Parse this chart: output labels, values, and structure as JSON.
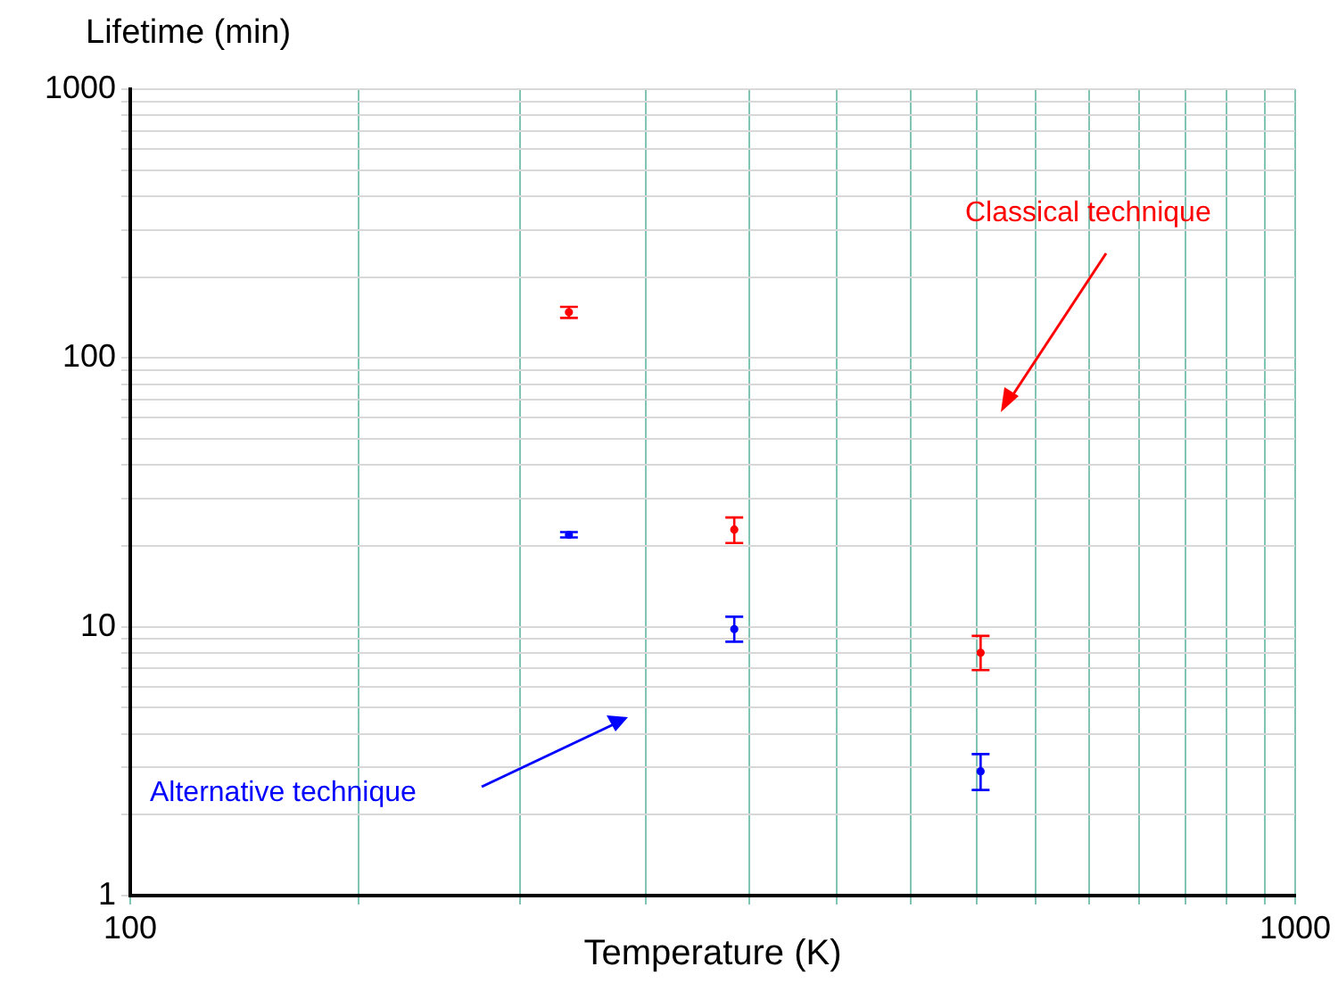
{
  "chart_data": {
    "type": "scatter",
    "xlabel": "Temperature (K)",
    "ylabel": "Lifetime (min)",
    "x": [
      238,
      330,
      537
    ],
    "series": [
      {
        "name": "Classical technique",
        "color": "#ff0000",
        "values": [
          148,
          23,
          8
        ],
        "errors": [
          [
            141,
            155
          ],
          [
            20.5,
            25.5
          ],
          [
            6.9,
            9.25
          ]
        ]
      },
      {
        "name": "Alternative technique",
        "color": "#0000ff",
        "values": [
          22,
          9.8,
          2.9
        ],
        "errors": [
          [
            21.5,
            22.5
          ],
          [
            8.8,
            10.9
          ],
          [
            2.47,
            3.36
          ]
        ]
      }
    ],
    "log": "xy",
    "xlim": [
      100,
      1000
    ],
    "ylim": [
      1,
      1000
    ],
    "xticks": [
      100,
      {
        "value": 157,
        "label": null
      },
      {
        "value": 216,
        "label": null
      },
      {
        "value": 277,
        "label": null
      },
      {
        "value": 340,
        "label": null
      },
      {
        "value": 404,
        "label": null
      },
      {
        "value": 468,
        "label": null
      },
      {
        "value": 533,
        "label": null
      },
      {
        "value": 599,
        "label": null
      },
      {
        "value": 665,
        "label": null
      },
      {
        "value": 735,
        "label": null
      },
      {
        "value": 805,
        "label": null
      },
      {
        "value": 873,
        "label": null
      },
      {
        "value": 942,
        "label": null
      },
      1000
    ],
    "yticks": [
      1,
      {
        "value": 2,
        "label": null
      },
      {
        "value": 3,
        "label": null
      },
      {
        "value": 4,
        "label": null
      },
      {
        "value": 5,
        "label": null
      },
      {
        "value": 6,
        "label": null
      },
      {
        "value": 7,
        "label": null
      },
      {
        "value": 8,
        "label": null
      },
      {
        "value": 9,
        "label": null
      },
      10,
      {
        "value": 20,
        "label": null
      },
      {
        "value": 30,
        "label": null
      },
      {
        "value": 40,
        "label": null
      },
      {
        "value": 50,
        "label": null
      },
      {
        "value": 60,
        "label": null
      },
      {
        "value": 70,
        "label": null
      },
      {
        "value": 80,
        "label": null
      },
      {
        "value": 90,
        "label": null
      },
      100,
      {
        "value": 200,
        "label": null
      },
      {
        "value": 300,
        "label": null
      },
      {
        "value": 400,
        "label": null
      },
      {
        "value": 500,
        "label": null
      },
      {
        "value": 600,
        "label": null
      },
      {
        "value": 700,
        "label": null
      },
      {
        "value": 800,
        "label": null
      },
      {
        "value": 900,
        "label": null
      },
      1000
    ],
    "grid": true,
    "legend": false,
    "marker": "circle"
  }
}
